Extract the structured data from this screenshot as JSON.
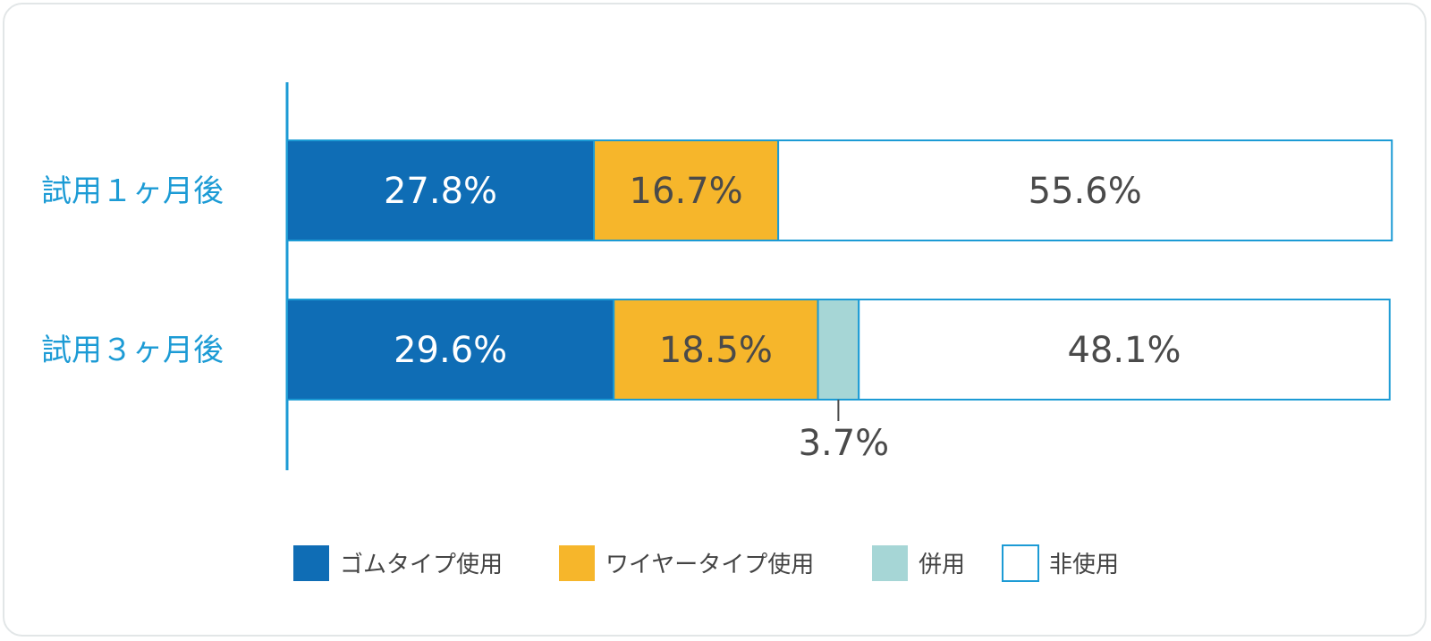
{
  "colors": {
    "axis": "#1c9bd5",
    "category_text": "#1c9bd5",
    "value_text_dark": "#4a4a4a",
    "value_text_light": "#ffffff",
    "frame_border": "#e2e6e7"
  },
  "chart_data": {
    "type": "bar",
    "orientation": "horizontal",
    "stacked": true,
    "normalized_percent": true,
    "categories": [
      "試用１ヶ月後",
      "試用３ヶ月後"
    ],
    "series": [
      {
        "name": "ゴムタイプ使用",
        "color": "#0f6db5",
        "values": [
          27.8,
          29.6
        ],
        "labels": [
          "27.8%",
          "29.6%"
        ]
      },
      {
        "name": "ワイヤータイプ使用",
        "color": "#f6b62b",
        "values": [
          16.7,
          18.5
        ],
        "labels": [
          "16.7%",
          "18.5%"
        ]
      },
      {
        "name": "併用",
        "color": "#a6d6d6",
        "values": [
          0,
          3.7
        ],
        "labels": [
          "",
          "3.7%"
        ]
      },
      {
        "name": "非使用",
        "color": "#ffffff",
        "values": [
          55.6,
          48.1
        ],
        "labels": [
          "55.6%",
          "48.1%"
        ]
      }
    ],
    "xlim": [
      0,
      100
    ],
    "legend_position": "bottom",
    "grid": false
  }
}
